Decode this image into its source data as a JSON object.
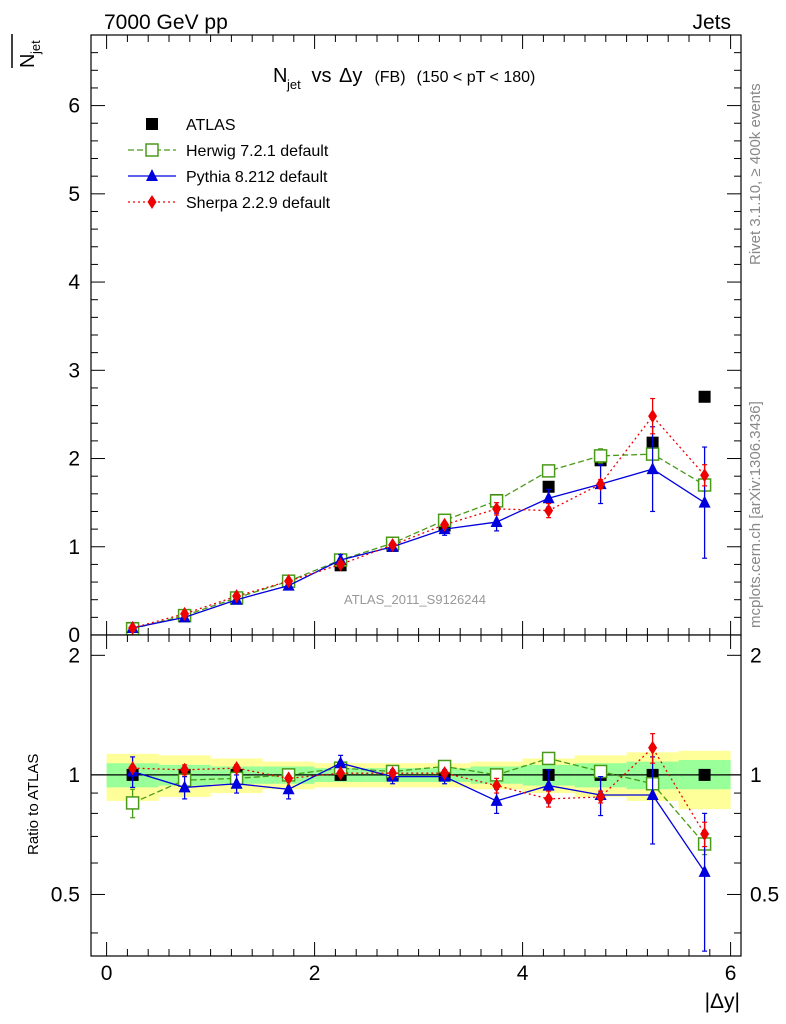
{
  "header": {
    "left": "7000 GeV pp",
    "right": "Jets"
  },
  "side_labels": {
    "rivet": "Rivet 3.1.10, ≥ 400k events",
    "mcplots": "mcplots.cern.ch [arXiv:1306.3436]"
  },
  "chart_data": {
    "type": "scatter",
    "title": {
      "main": "N",
      "main_sub": "jet",
      "vs": " vs ",
      "delta_y": "Δy",
      "fb": " (FB)",
      "range": " (150 < pT < 180)"
    },
    "ylabel_top": "N",
    "ylabel_top_sub": "jet",
    "ylabel_bottom": "Ratio to ATLAS",
    "xlabel": "|Δy|",
    "watermark": "ATLAS_2011_S9126244",
    "xlim": [
      -0.15,
      6.1
    ],
    "ylim": [
      0,
      6.8
    ],
    "ratio_ylim": [
      0.35,
      2.25
    ],
    "x_ticks": [
      "0",
      "2",
      "4",
      "6"
    ],
    "y_ticks": [
      "0",
      "1",
      "2",
      "3",
      "4",
      "5",
      "6"
    ],
    "ratio_ticks": [
      "0.5",
      "1",
      "2"
    ],
    "x": [
      0.25,
      0.75,
      1.25,
      1.75,
      2.25,
      2.75,
      3.25,
      3.75,
      4.25,
      4.75,
      5.25,
      5.75
    ],
    "band_inner": [
      [
        0.93,
        1.07
      ],
      [
        0.94,
        1.06
      ],
      [
        0.95,
        1.05
      ],
      [
        0.95,
        1.05
      ],
      [
        0.96,
        1.04
      ],
      [
        0.96,
        1.04
      ],
      [
        0.96,
        1.04
      ],
      [
        0.95,
        1.05
      ],
      [
        0.94,
        1.06
      ],
      [
        0.93,
        1.07
      ],
      [
        0.92,
        1.08
      ],
      [
        0.92,
        1.09
      ]
    ],
    "band_outer": [
      [
        0.86,
        1.13
      ],
      [
        0.88,
        1.12
      ],
      [
        0.9,
        1.1
      ],
      [
        0.92,
        1.08
      ],
      [
        0.93,
        1.07
      ],
      [
        0.93,
        1.07
      ],
      [
        0.93,
        1.07
      ],
      [
        0.92,
        1.08
      ],
      [
        0.9,
        1.1
      ],
      [
        0.88,
        1.12
      ],
      [
        0.86,
        1.14
      ],
      [
        0.82,
        1.15
      ]
    ],
    "series": [
      {
        "name": "ATLAS",
        "color": "#000000",
        "marker": "square",
        "line": "none",
        "values": [
          0.08,
          0.22,
          0.42,
          0.61,
          0.79,
          1.01,
          1.24,
          1.53,
          1.68,
          1.98,
          2.18,
          2.7
        ],
        "ratio": [
          1,
          1,
          1,
          1,
          1,
          1,
          1,
          1,
          1,
          1,
          1,
          1
        ],
        "errors": [
          0,
          0,
          0,
          0,
          0,
          0,
          0,
          0,
          0,
          0,
          0,
          0
        ],
        "ratio_errors": [
          0,
          0,
          0,
          0,
          0,
          0,
          0,
          0,
          0,
          0,
          0,
          0
        ]
      },
      {
        "name": "Herwig 7.2.1 default",
        "color": "#4a9a1a",
        "marker": "open-square",
        "line": "dashed",
        "values": [
          0.07,
          0.22,
          0.42,
          0.61,
          0.85,
          1.04,
          1.3,
          1.52,
          1.86,
          2.03,
          2.05,
          1.7
        ],
        "ratio": [
          0.85,
          0.97,
          0.98,
          1.0,
          1.04,
          1.02,
          1.05,
          1.0,
          1.1,
          1.02,
          0.95,
          0.67
        ],
        "errors": [
          0,
          0,
          0,
          0,
          0,
          0,
          0,
          0,
          0,
          0.08,
          0,
          0.07
        ],
        "ratio_errors": [
          0.07,
          0,
          0,
          0,
          0,
          0,
          0,
          0,
          0.02,
          0.03,
          0,
          0.04
        ]
      },
      {
        "name": "Pythia 8.212 default",
        "color": "#0000dd",
        "marker": "triangle",
        "line": "solid",
        "values": [
          0.08,
          0.2,
          0.4,
          0.56,
          0.85,
          1.0,
          1.2,
          1.28,
          1.55,
          1.71,
          1.88,
          1.5
        ],
        "ratio": [
          1.02,
          0.93,
          0.95,
          0.92,
          1.07,
          0.99,
          0.99,
          0.86,
          0.94,
          0.89,
          0.89,
          0.57
        ],
        "errors": [
          0,
          0,
          0,
          0,
          0.06,
          0,
          0.07,
          0.1,
          0.1,
          0.22,
          0.48,
          0.63
        ],
        "ratio_errors": [
          0.09,
          0.06,
          0.05,
          0.05,
          0.05,
          0.04,
          0.04,
          0.06,
          0.09,
          0.1,
          0.22,
          0.23
        ]
      },
      {
        "name": "Sherpa 2.2.9 default",
        "color": "#ee0000",
        "marker": "diamond",
        "line": "dotted",
        "values": [
          0.08,
          0.24,
          0.44,
          0.61,
          0.8,
          1.02,
          1.25,
          1.43,
          1.41,
          1.71,
          2.48,
          1.81
        ],
        "ratio": [
          1.04,
          1.03,
          1.04,
          0.98,
          1.01,
          1.01,
          1.01,
          0.94,
          0.87,
          0.88,
          1.17,
          0.71
        ],
        "errors": [
          0,
          0,
          0,
          0,
          0,
          0,
          0,
          0.07,
          0.08,
          0.05,
          0.2,
          0.12
        ],
        "ratio_errors": [
          0,
          0.03,
          0.02,
          0,
          0,
          0,
          0,
          0.04,
          0.04,
          0.03,
          0.1,
          0.05
        ]
      }
    ]
  }
}
